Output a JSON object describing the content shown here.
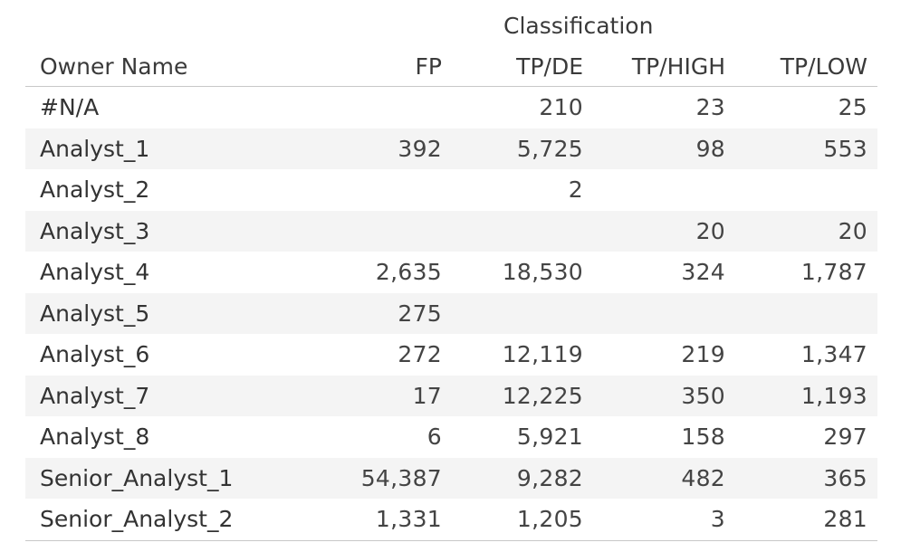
{
  "chart_data": {
    "type": "table",
    "column_group_label": "Classification",
    "row_header": "Owner Name",
    "columns": [
      "FP",
      "TP/DE",
      "TP/HIGH",
      "TP/LOW"
    ],
    "rows": [
      {
        "owner": "#N/A",
        "values": [
          "",
          "210",
          "23",
          "25"
        ]
      },
      {
        "owner": "Analyst_1",
        "values": [
          "392",
          "5,725",
          "98",
          "553"
        ]
      },
      {
        "owner": "Analyst_2",
        "values": [
          "",
          "2",
          "",
          ""
        ]
      },
      {
        "owner": "Analyst_3",
        "values": [
          "",
          "",
          "20",
          "20"
        ]
      },
      {
        "owner": "Analyst_4",
        "values": [
          "2,635",
          "18,530",
          "324",
          "1,787"
        ]
      },
      {
        "owner": "Analyst_5",
        "values": [
          "275",
          "",
          "",
          ""
        ]
      },
      {
        "owner": "Analyst_6",
        "values": [
          "272",
          "12,119",
          "219",
          "1,347"
        ]
      },
      {
        "owner": "Analyst_7",
        "values": [
          "17",
          "12,225",
          "350",
          "1,193"
        ]
      },
      {
        "owner": "Analyst_8",
        "values": [
          "6",
          "5,921",
          "158",
          "297"
        ]
      },
      {
        "owner": "Senior_Analyst_1",
        "values": [
          "54,387",
          "9,282",
          "482",
          "365"
        ]
      },
      {
        "owner": "Senior_Analyst_2",
        "values": [
          "1,331",
          "1,205",
          "3",
          "281"
        ]
      }
    ]
  },
  "colors": {
    "band": "#f4f4f4",
    "rule": "#c8c8c8",
    "text": "#333333"
  }
}
